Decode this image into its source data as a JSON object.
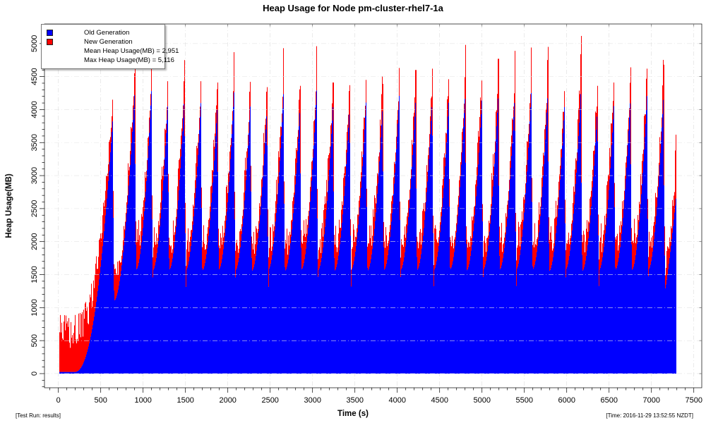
{
  "window": {
    "title": "Heap Usage for Node pm-cluster-rhel7-1a"
  },
  "chart_data": {
    "type": "area",
    "title": "Heap Usage for Node pm-cluster-rhel7-1a",
    "xlabel": "Time (s)",
    "ylabel": "Heap Usage(MB)",
    "xlim": [
      -164,
      7594
    ],
    "ylim": [
      -214,
      5297
    ],
    "x_ticks": {
      "min": 0,
      "max": 7500,
      "major_step": 500,
      "minor_step": 100
    },
    "y_ticks": {
      "min": 0,
      "max": 5000,
      "major_step": 500,
      "minor_step": 100
    },
    "grid": "dash-dot",
    "legend": {
      "position": "top-left",
      "items": [
        {
          "label": "Old Generation",
          "color": "#0000ff"
        },
        {
          "label": "New Generation",
          "color": "#ff0000"
        }
      ],
      "stats": [
        "Mean Heap Usage(MB) = 2,951",
        "Max Heap Usage(MB) = 5,116"
      ]
    },
    "mean_heap_mb": 2951,
    "max_heap_mb": 5116,
    "series_model": {
      "description": "Stacked heap areas: old generation (blue) from 0, new generation (red) stacked on top. Warmup ramp 0-640s, then periodic full-GC sawtooth cycles (~195s) to end of run at 7294s. cycles entries are [peak_time_s, old_gen_peak_mb, total_peak_mb].",
      "warmup": {
        "start_s": 5,
        "flat_until_s": 185,
        "flat_old_mb": 25,
        "curve_exp": 2.3
      },
      "crash_duration_s": 18,
      "floor_mb": 1280,
      "first_cycle_floor_mb": 750,
      "cycles": [
        [
          640,
          3900,
          4150
        ],
        [
          900,
          4350,
          4620
        ],
        [
          1095,
          4300,
          4740
        ],
        [
          1290,
          4150,
          4430
        ],
        [
          1485,
          4280,
          4750
        ],
        [
          1680,
          4160,
          4430
        ],
        [
          1875,
          4140,
          4410
        ],
        [
          2070,
          4280,
          4870
        ],
        [
          2265,
          4150,
          4420
        ],
        [
          2460,
          4080,
          4340
        ],
        [
          2655,
          4300,
          4930
        ],
        [
          2850,
          4090,
          4360
        ],
        [
          3045,
          4310,
          4960
        ],
        [
          3240,
          4140,
          4410
        ],
        [
          3435,
          4110,
          4370
        ],
        [
          3630,
          4170,
          4450
        ],
        [
          3825,
          4120,
          4390
        ],
        [
          4020,
          4230,
          4630
        ],
        [
          4215,
          4210,
          4600
        ],
        [
          4410,
          4230,
          4620
        ],
        [
          4605,
          4170,
          4460
        ],
        [
          4800,
          4320,
          4980
        ],
        [
          4995,
          4160,
          4440
        ],
        [
          5190,
          4280,
          4770
        ],
        [
          5385,
          4300,
          4890
        ],
        [
          5580,
          4320,
          4940
        ],
        [
          5775,
          4330,
          4950
        ],
        [
          5970,
          4060,
          4280
        ],
        [
          6165,
          4350,
          5116
        ],
        [
          6360,
          4080,
          4360
        ],
        [
          6555,
          4120,
          4410
        ],
        [
          6750,
          4250,
          4640
        ],
        [
          6945,
          4230,
          4620
        ],
        [
          7140,
          4260,
          4680
        ]
      ],
      "tail": {
        "end_s": 7294,
        "end_old_mb": 2760,
        "spikes": [
          [
            7278,
            3380
          ],
          [
            7288,
            3620
          ]
        ]
      },
      "minor_gc": {
        "warmup_tip_min_mb": 350,
        "warmup_tip_max_mb": 870,
        "rise_tip_min_mb": 130,
        "rise_tip_max_mb": 510,
        "crash_tip_min_mb": 240,
        "crash_tip_max_mb": 460,
        "valley_tip_min_mb": 360,
        "valley_tip_max_mb": 500
      }
    }
  },
  "footer": {
    "left": "[Test Run: results]",
    "right": "[Time: 2016-11-29 13:52:55 NZDT]"
  },
  "colors": {
    "old_gen": "#0000ff",
    "new_gen": "#ff0000",
    "grid": "#dcdcdc",
    "grid_over_data": "#e3e3e3",
    "axis": "#000000",
    "background": "#ffffff"
  }
}
